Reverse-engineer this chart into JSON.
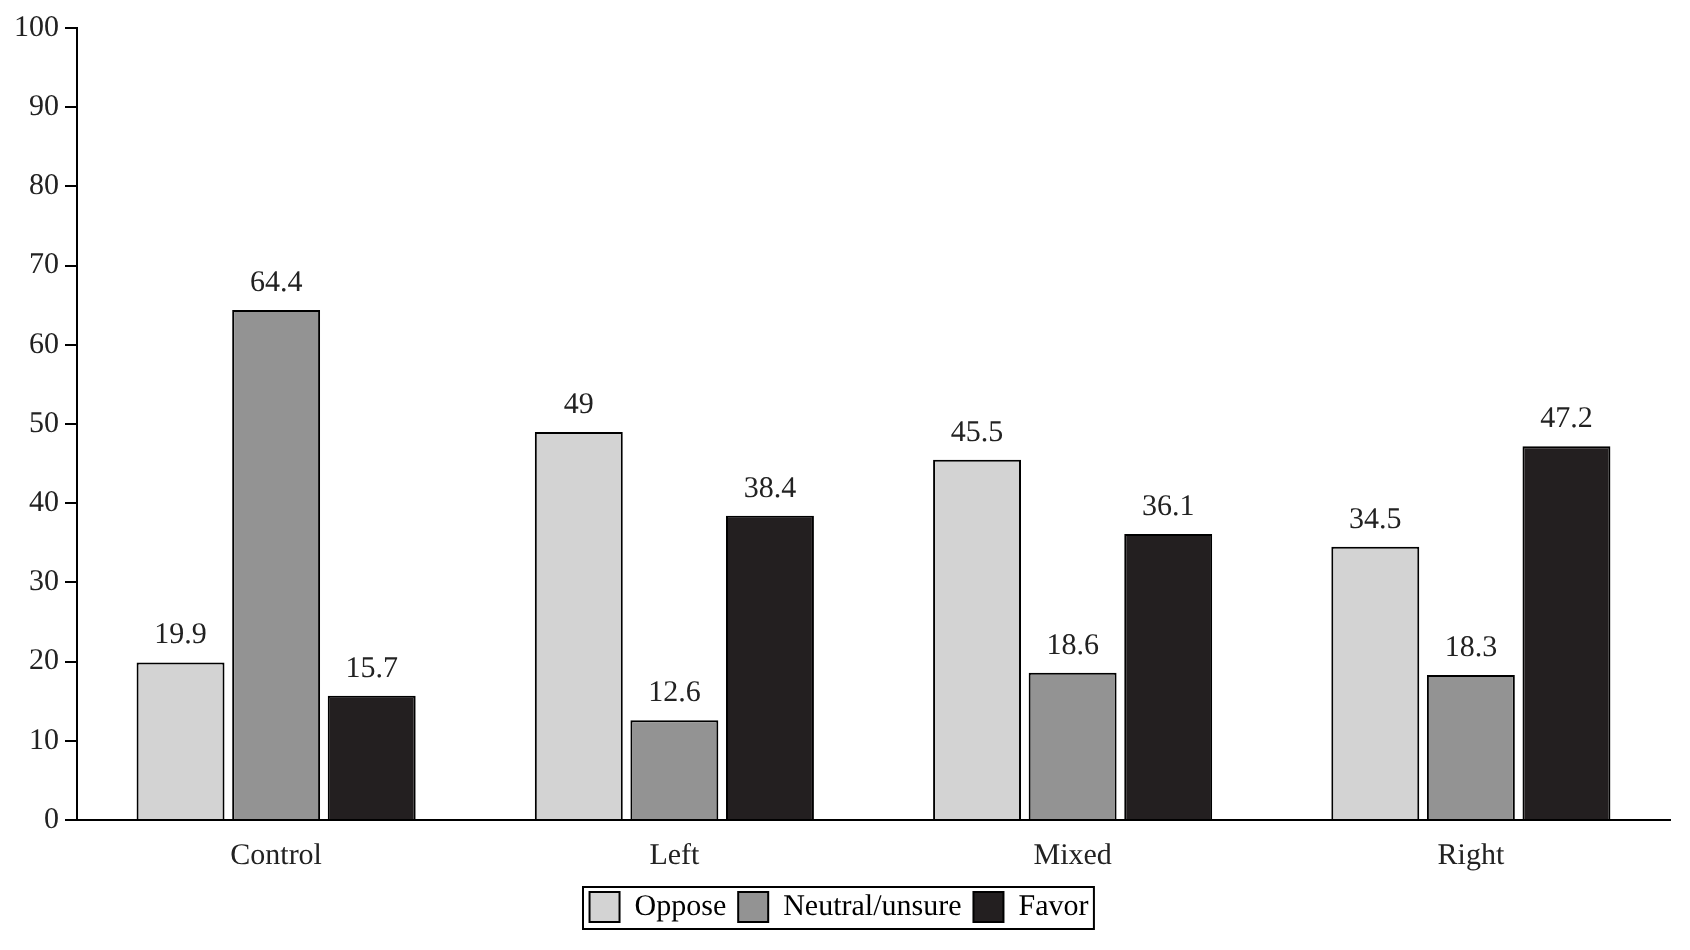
{
  "chart_data": {
    "type": "bar",
    "categories": [
      "Control",
      "Left",
      "Mixed",
      "Right"
    ],
    "series": [
      {
        "name": "Oppose",
        "color": "#d3d3d3",
        "values": [
          19.9,
          49,
          45.5,
          34.5
        ]
      },
      {
        "name": "Neutral/unsure",
        "color": "#939393",
        "values": [
          64.4,
          12.6,
          18.6,
          18.3
        ]
      },
      {
        "name": "Favor",
        "color": "#231f20",
        "values": [
          15.7,
          38.4,
          36.1,
          47.2
        ]
      }
    ],
    "ylim": [
      0,
      100
    ],
    "yticks": [
      0,
      10,
      20,
      30,
      40,
      50,
      60,
      70,
      80,
      90,
      100
    ],
    "grid": false,
    "legend": "bottom",
    "data_labels": true
  }
}
